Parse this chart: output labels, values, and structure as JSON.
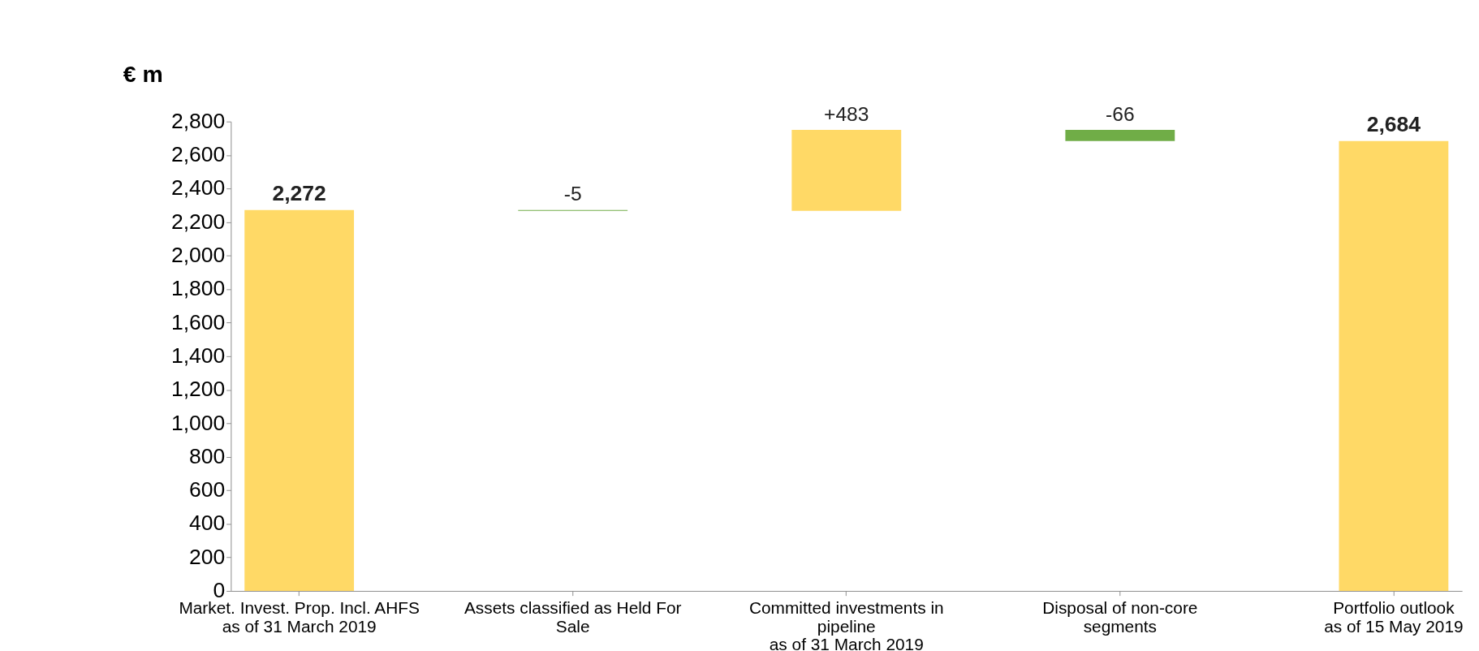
{
  "chart_data": {
    "type": "bar",
    "ylabel": "€ m",
    "categories": [
      "Market. Invest. Prop. Incl. AHFS\nas of 31 March 2019",
      "Assets classified as Held For\nSale",
      "Committed investments in\npipeline\nas of 31 March 2019",
      "Disposal of non-core\nsegments",
      "Portfolio outlook\nas of 15 May 2019"
    ],
    "values": [
      2272,
      -5,
      483,
      -66,
      2684
    ],
    "base": [
      0,
      2272,
      2267,
      2750,
      0
    ],
    "colors": [
      "#ffd966",
      "#70ad47",
      "#ffd966",
      "#70ad47",
      "#ffd966"
    ],
    "value_labels": [
      "2,272",
      "-5",
      "+483",
      "-66",
      "2,684"
    ],
    "ylim": [
      0,
      2800
    ],
    "yticks": [
      0,
      200,
      400,
      600,
      800,
      {
        "value": 1000,
        "label": "1,000"
      },
      {
        "value": 1200,
        "label": "1,200"
      },
      {
        "value": 1400,
        "label": "1,400"
      },
      {
        "value": 1600,
        "label": "1,600"
      },
      {
        "value": 1800,
        "label": "1,800"
      },
      {
        "value": 2000,
        "label": "2,000"
      },
      {
        "value": 2200,
        "label": "2,200"
      },
      {
        "value": 2400,
        "label": "2,400"
      },
      {
        "value": 2600,
        "label": "2,600"
      },
      {
        "value": 2800,
        "label": "2,800"
      }
    ],
    "grid": false
  }
}
